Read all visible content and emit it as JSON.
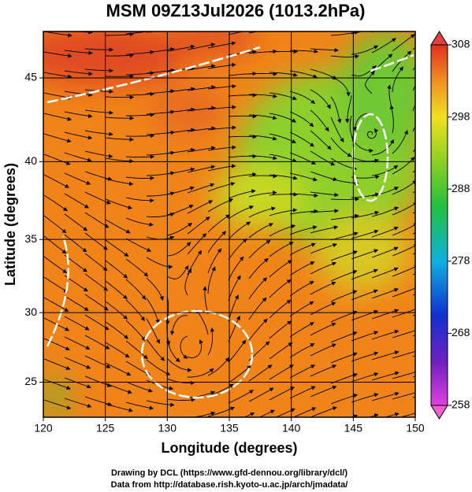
{
  "chart_data": {
    "type": "map",
    "title": "MSM 09Z13Jul2026 (1013.2hPa)",
    "xlabel": "Longitude (degrees)",
    "ylabel": "Latitude  (degrees)",
    "xlim": [
      120,
      150
    ],
    "xticks": [
      120,
      125,
      130,
      135,
      140,
      145,
      150
    ],
    "ylim": [
      22.4,
      47.6
    ],
    "yticks": [
      25,
      30,
      35,
      40,
      45
    ],
    "yscale": "mercator",
    "grid": true,
    "colorbar": {
      "lim": [
        258,
        308
      ],
      "ticks": [
        258,
        268,
        278,
        288,
        298,
        308
      ]
    },
    "footnotes": [
      "Drawing by DCL (https://www.gfd-dennou.org/library/dcl/)",
      "Data from http://database.rish.kyoto-u.ac.jp/arch/jmadata/"
    ]
  }
}
